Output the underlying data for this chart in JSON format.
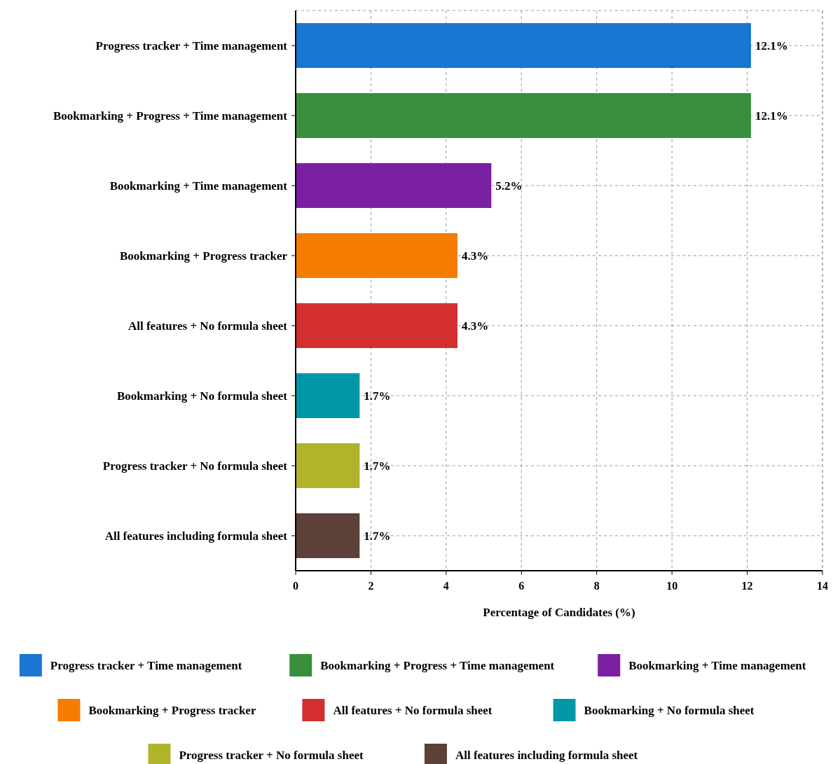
{
  "chart_data": {
    "type": "bar",
    "orientation": "horizontal",
    "xlabel": "Percentage of Candidates (%)",
    "categories": [
      "Progress tracker + Time management",
      "Bookmarking + Progress + Time management",
      "Bookmarking + Time management",
      "Bookmarking + Progress tracker",
      "All features + No formula sheet",
      "Bookmarking + No formula sheet",
      "Progress tracker + No formula sheet",
      "All features including formula sheet"
    ],
    "series": [
      {
        "name": "Progress tracker + Time management",
        "color": "#1976d2",
        "values": [
          12.1,
          null,
          null,
          null,
          null,
          null,
          null,
          null
        ],
        "value_labels": [
          "12.1%",
          null,
          null,
          null,
          null,
          null,
          null,
          null
        ]
      },
      {
        "name": "Bookmarking + Progress + Time management",
        "color": "#388e3c",
        "values": [
          null,
          12.1,
          null,
          null,
          null,
          null,
          null,
          null
        ],
        "value_labels": [
          null,
          "12.1%",
          null,
          null,
          null,
          null,
          null,
          null
        ]
      },
      {
        "name": "Bookmarking + Time management",
        "color": "#7b1fa2",
        "values": [
          null,
          null,
          5.2,
          null,
          null,
          null,
          null,
          null
        ],
        "value_labels": [
          null,
          null,
          "5.2%",
          null,
          null,
          null,
          null,
          null
        ]
      },
      {
        "name": "Bookmarking + Progress tracker",
        "color": "#f57c00",
        "values": [
          null,
          null,
          null,
          4.3,
          null,
          null,
          null,
          null
        ],
        "value_labels": [
          null,
          null,
          null,
          "4.3%",
          null,
          null,
          null,
          null
        ]
      },
      {
        "name": "All features + No formula sheet",
        "color": "#d32f2f",
        "values": [
          null,
          null,
          null,
          null,
          4.3,
          null,
          null,
          null
        ],
        "value_labels": [
          null,
          null,
          null,
          null,
          "4.3%",
          null,
          null,
          null
        ]
      },
      {
        "name": "Bookmarking + No formula sheet",
        "color": "#0097a7",
        "values": [
          null,
          null,
          null,
          null,
          null,
          1.7,
          null,
          null
        ],
        "value_labels": [
          null,
          null,
          null,
          null,
          null,
          "1.7%",
          null,
          null
        ]
      },
      {
        "name": "Progress tracker + No formula sheet",
        "color": "#afb42b",
        "values": [
          null,
          null,
          null,
          null,
          null,
          null,
          1.7,
          null
        ],
        "value_labels": [
          null,
          null,
          null,
          null,
          null,
          null,
          "1.7%",
          null
        ]
      },
      {
        "name": "All features including formula sheet",
        "color": "#5d4037",
        "values": [
          null,
          null,
          null,
          null,
          null,
          null,
          null,
          1.7
        ],
        "value_labels": [
          null,
          null,
          null,
          null,
          null,
          null,
          null,
          "1.7%"
        ]
      }
    ],
    "xlim": [
      0,
      14
    ],
    "xticks": [
      0,
      2,
      4,
      6,
      8,
      10,
      12,
      14
    ],
    "grid": true,
    "legend": "bottom"
  }
}
